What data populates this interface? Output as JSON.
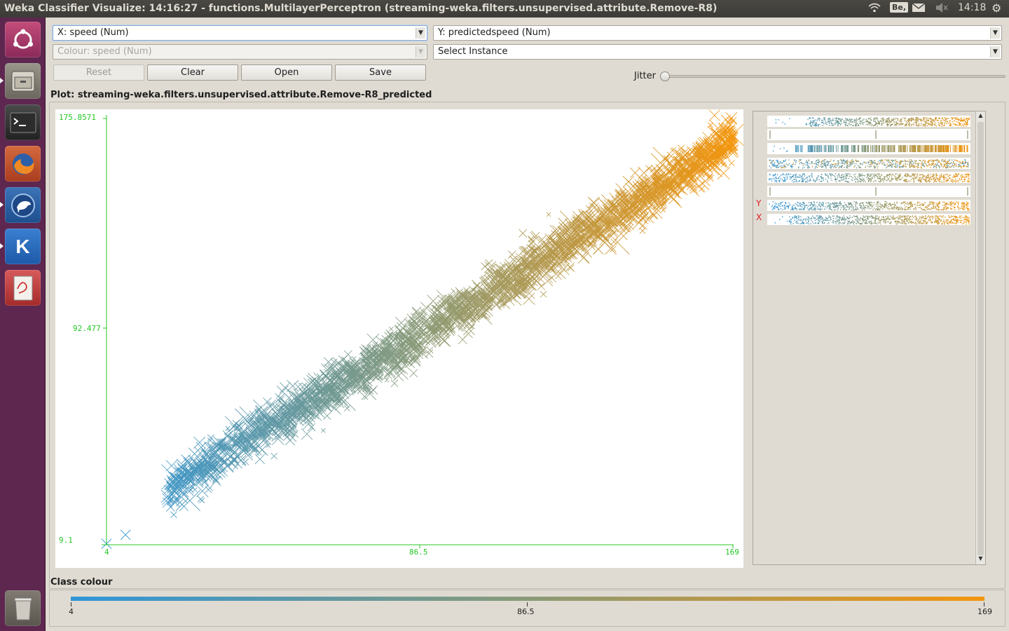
{
  "window_title": "Weka Classifier Visualize: 14:16:27 - functions.MultilayerPerceptron (streaming-weka.filters.unsupervised.attribute.Remove-R8)",
  "topbar": {
    "keyboard_indicator": "Be,",
    "clock": "14:18"
  },
  "controls": {
    "x_axis": "X: speed (Num)",
    "y_axis": "Y: predictedspeed (Num)",
    "colour": "Colour: speed (Num)",
    "select_instance": "Select Instance",
    "reset": "Reset",
    "clear": "Clear",
    "open": "Open",
    "save": "Save",
    "jitter": "Jitter"
  },
  "plot_title": "Plot: streaming-weka.filters.unsupervised.attribute.Remove-R8_predicted",
  "class_colour": {
    "label": "Class colour",
    "min": "4",
    "mid": "86.5",
    "max": "169"
  },
  "attribute_panel": {
    "y_marker": "Y",
    "x_marker": "X",
    "row_count": 8
  },
  "colors": {
    "low": "#3096d8",
    "high": "#f3960e",
    "axis": "#24c824"
  },
  "chart_data": {
    "type": "scatter",
    "title": "Plot: streaming-weka.filters.unsupervised.attribute.Remove-R8_predicted",
    "xlabel": "speed",
    "ylabel": "predictedspeed",
    "xlim": [
      4,
      169
    ],
    "ylim": [
      9.1,
      175.8571
    ],
    "x_ticks": [
      "4",
      "86.5",
      "169"
    ],
    "y_ticks": [
      "9.1",
      "92.477",
      "175.8571"
    ],
    "marker": "cross",
    "color_by": "speed",
    "trend_points": [
      {
        "x": 20,
        "y": 30
      },
      {
        "x": 40,
        "y": 50
      },
      {
        "x": 60,
        "y": 67
      },
      {
        "x": 80,
        "y": 85
      },
      {
        "x": 100,
        "y": 103
      },
      {
        "x": 120,
        "y": 122
      },
      {
        "x": 140,
        "y": 140
      },
      {
        "x": 160,
        "y": 158
      },
      {
        "x": 168,
        "y": 168
      }
    ]
  }
}
